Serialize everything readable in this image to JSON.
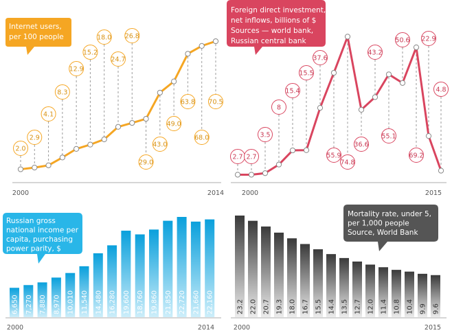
{
  "chart_data": [
    {
      "type": "line",
      "title": "Internet users,\nper 100 people",
      "x_start_label": "2000",
      "x_end_label": "2014",
      "x": [
        2000,
        2001,
        2002,
        2003,
        2004,
        2005,
        2006,
        2007,
        2008,
        2009,
        2010,
        2011,
        2012,
        2013,
        2014
      ],
      "values": [
        2.0,
        2.9,
        4.1,
        8.3,
        12.9,
        15.2,
        18.0,
        24.7,
        26.8,
        29.0,
        43.0,
        49.0,
        63.8,
        68.0,
        70.5
      ],
      "labels": [
        "2.0",
        "2.9",
        "4.1",
        "8.3",
        "12.9",
        "15.2",
        "18.0",
        "24.7",
        "26.8",
        "29.0",
        "43.0",
        "49.0",
        "63.8",
        "68.0",
        "70.5"
      ],
      "color": "#f5a623"
    },
    {
      "type": "line",
      "title": "Foreign direct investment,\nnet inflows, billions of $\nSources — world bank,\nRussian central bank",
      "x_start_label": "2000",
      "x_end_label": "2015",
      "x": [
        2000,
        2001,
        2002,
        2003,
        2004,
        2005,
        2006,
        2007,
        2008,
        2009,
        2010,
        2011,
        2012,
        2013,
        2014,
        2015
      ],
      "values": [
        2.7,
        2.7,
        3.5,
        8,
        15.4,
        15.5,
        37.6,
        55.9,
        74.8,
        36.6,
        43.2,
        55.1,
        50.6,
        69.2,
        22.9,
        4.8
      ],
      "labels": [
        "2.7",
        "2.7",
        "3.5",
        "8",
        "15.4",
        "15.5",
        "37.6",
        "55.9",
        "74.8",
        "36.6",
        "43.2",
        "55.1",
        "50.6",
        "69.2",
        "22.9",
        "4.8"
      ],
      "color": "#d9455f"
    },
    {
      "type": "bar",
      "title": "Russian gross\nnational income per\ncapita, purchasing\npower parity, $",
      "x_start_label": "2000",
      "x_end_label": "2014",
      "categories": [
        2000,
        2001,
        2002,
        2003,
        2004,
        2005,
        2006,
        2007,
        2008,
        2009,
        2010,
        2011,
        2012,
        2013,
        2014
      ],
      "values": [
        6650,
        7270,
        7880,
        8970,
        10010,
        11540,
        14480,
        16280,
        19600,
        18760,
        19860,
        21850,
        22720,
        21660,
        22160
      ],
      "labels": [
        "6,650",
        "7,270",
        "7,880",
        "8,970",
        "10,010",
        "11,540",
        "14,480",
        "16,280",
        "19,600",
        "18,760",
        "19,860",
        "21,850",
        "22,720",
        "21,660",
        "22,160"
      ],
      "color": "#29b6e8"
    },
    {
      "type": "bar",
      "title": "Mortality rate, under 5,\nper 1,000 people\nSource, World Bank",
      "x_start_label": "2000",
      "x_end_label": "2015",
      "categories": [
        2000,
        2001,
        2002,
        2003,
        2004,
        2005,
        2006,
        2007,
        2008,
        2009,
        2010,
        2011,
        2012,
        2013,
        2014,
        2015
      ],
      "values": [
        23.2,
        22.0,
        20.7,
        19.3,
        18.0,
        16.7,
        15.5,
        14.4,
        13.5,
        12.7,
        12.0,
        11.4,
        10.8,
        10.4,
        9.9,
        9.6
      ],
      "labels": [
        "23.2",
        "22.0",
        "20.7",
        "19.3",
        "18.0",
        "16.7",
        "15.5",
        "14.4",
        "13.5",
        "12.7",
        "12.0",
        "11.4",
        "10.8",
        "10.4",
        "9.9",
        "9.6"
      ],
      "color": "#6a6a6a"
    }
  ]
}
